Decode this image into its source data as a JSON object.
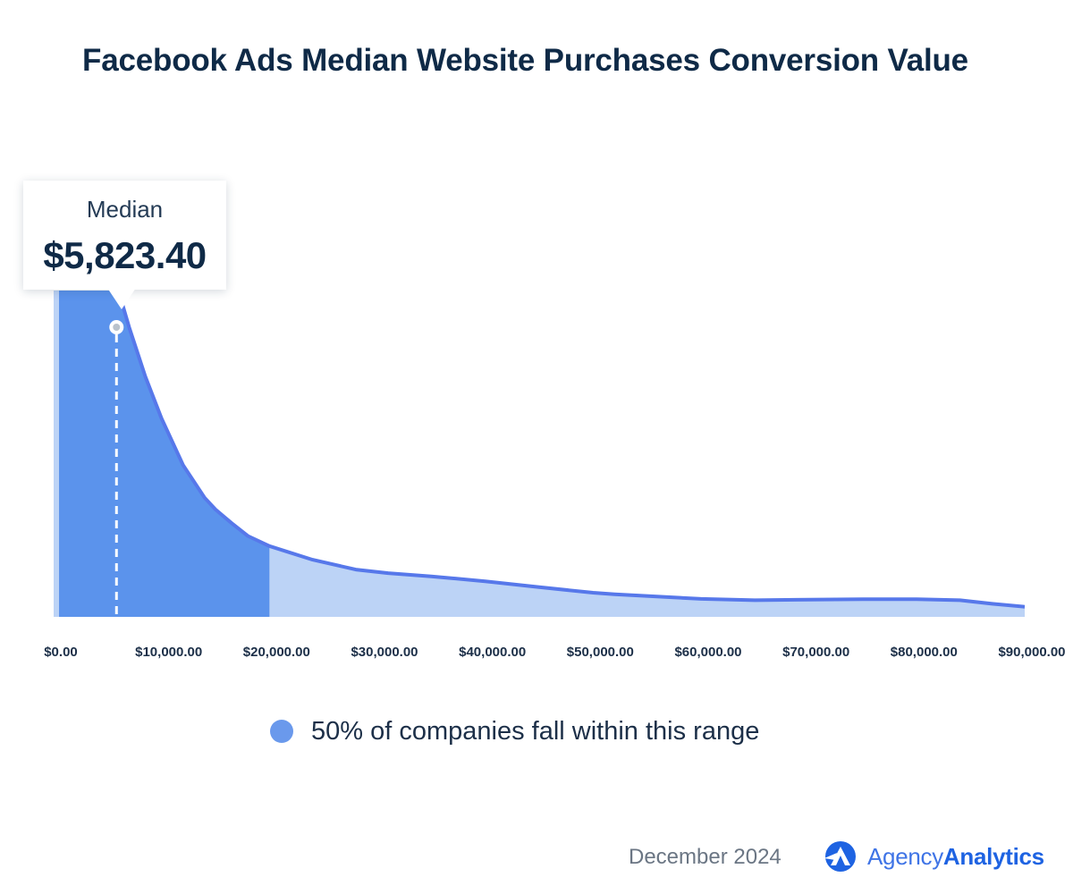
{
  "colors": {
    "title": "#0f2a47",
    "distribution_fill": "#bcd3f6",
    "range_fill": "#5b93ec",
    "curve_stroke": "#5778ea",
    "legend_dot": "#6a99ec",
    "logo_blue": "#1e63e2"
  },
  "callout": {
    "label": "Median",
    "value": "$5,823.40"
  },
  "legend": {
    "label": "50% of companies fall within this range",
    "icon": "legend-dot"
  },
  "footer": {
    "date": "December 2024",
    "brand_part1": "Agency",
    "brand_part2": "Analytics",
    "logo_icon": "agencyanalytics-logo-icon"
  },
  "chart_data": {
    "type": "area",
    "title": "Facebook Ads Median Website Purchases Conversion Value",
    "xlabel": "",
    "ylabel": "",
    "x_unit": "USD",
    "xlim": [
      0,
      90000
    ],
    "ylim": [
      0,
      100
    ],
    "x_ticks": [
      0,
      10000,
      20000,
      30000,
      40000,
      50000,
      60000,
      70000,
      80000,
      90000
    ],
    "x_tick_labels": [
      "$0.00",
      "$10,000.00",
      "$20,000.00",
      "$30,000.00",
      "$40,000.00",
      "$50,000.00",
      "$60,000.00",
      "$70,000.00",
      "$80,000.00",
      "$90,000.00"
    ],
    "curve": {
      "x": [
        0,
        1000,
        2500,
        4000,
        5000,
        6000,
        7000,
        8500,
        10000,
        12000,
        14000,
        15000,
        16500,
        18000,
        20000,
        24000,
        28000,
        31000,
        35000,
        40000,
        45000,
        50000,
        52000,
        60000,
        65000,
        70000,
        75000,
        80000,
        84000,
        87000,
        90000
      ],
      "y": [
        100,
        100,
        100,
        100,
        100,
        100,
        88.7,
        73.6,
        60.8,
        46.5,
        36.5,
        32.9,
        28.7,
        24.8,
        21.7,
        17.5,
        14.5,
        13.4,
        12.4,
        10.9,
        9.1,
        7.4,
        6.9,
        5.5,
        5.1,
        5.3,
        5.4,
        5.4,
        5.1,
        4.0,
        3.1
      ]
    },
    "median": 5823.4,
    "median_label": "Median",
    "median_value_label": "$5,823.40",
    "highlight_range": [
      500,
      20000
    ],
    "highlight_label": "50% of companies fall within this range",
    "legend_position": "bottom-center",
    "grid": false
  }
}
